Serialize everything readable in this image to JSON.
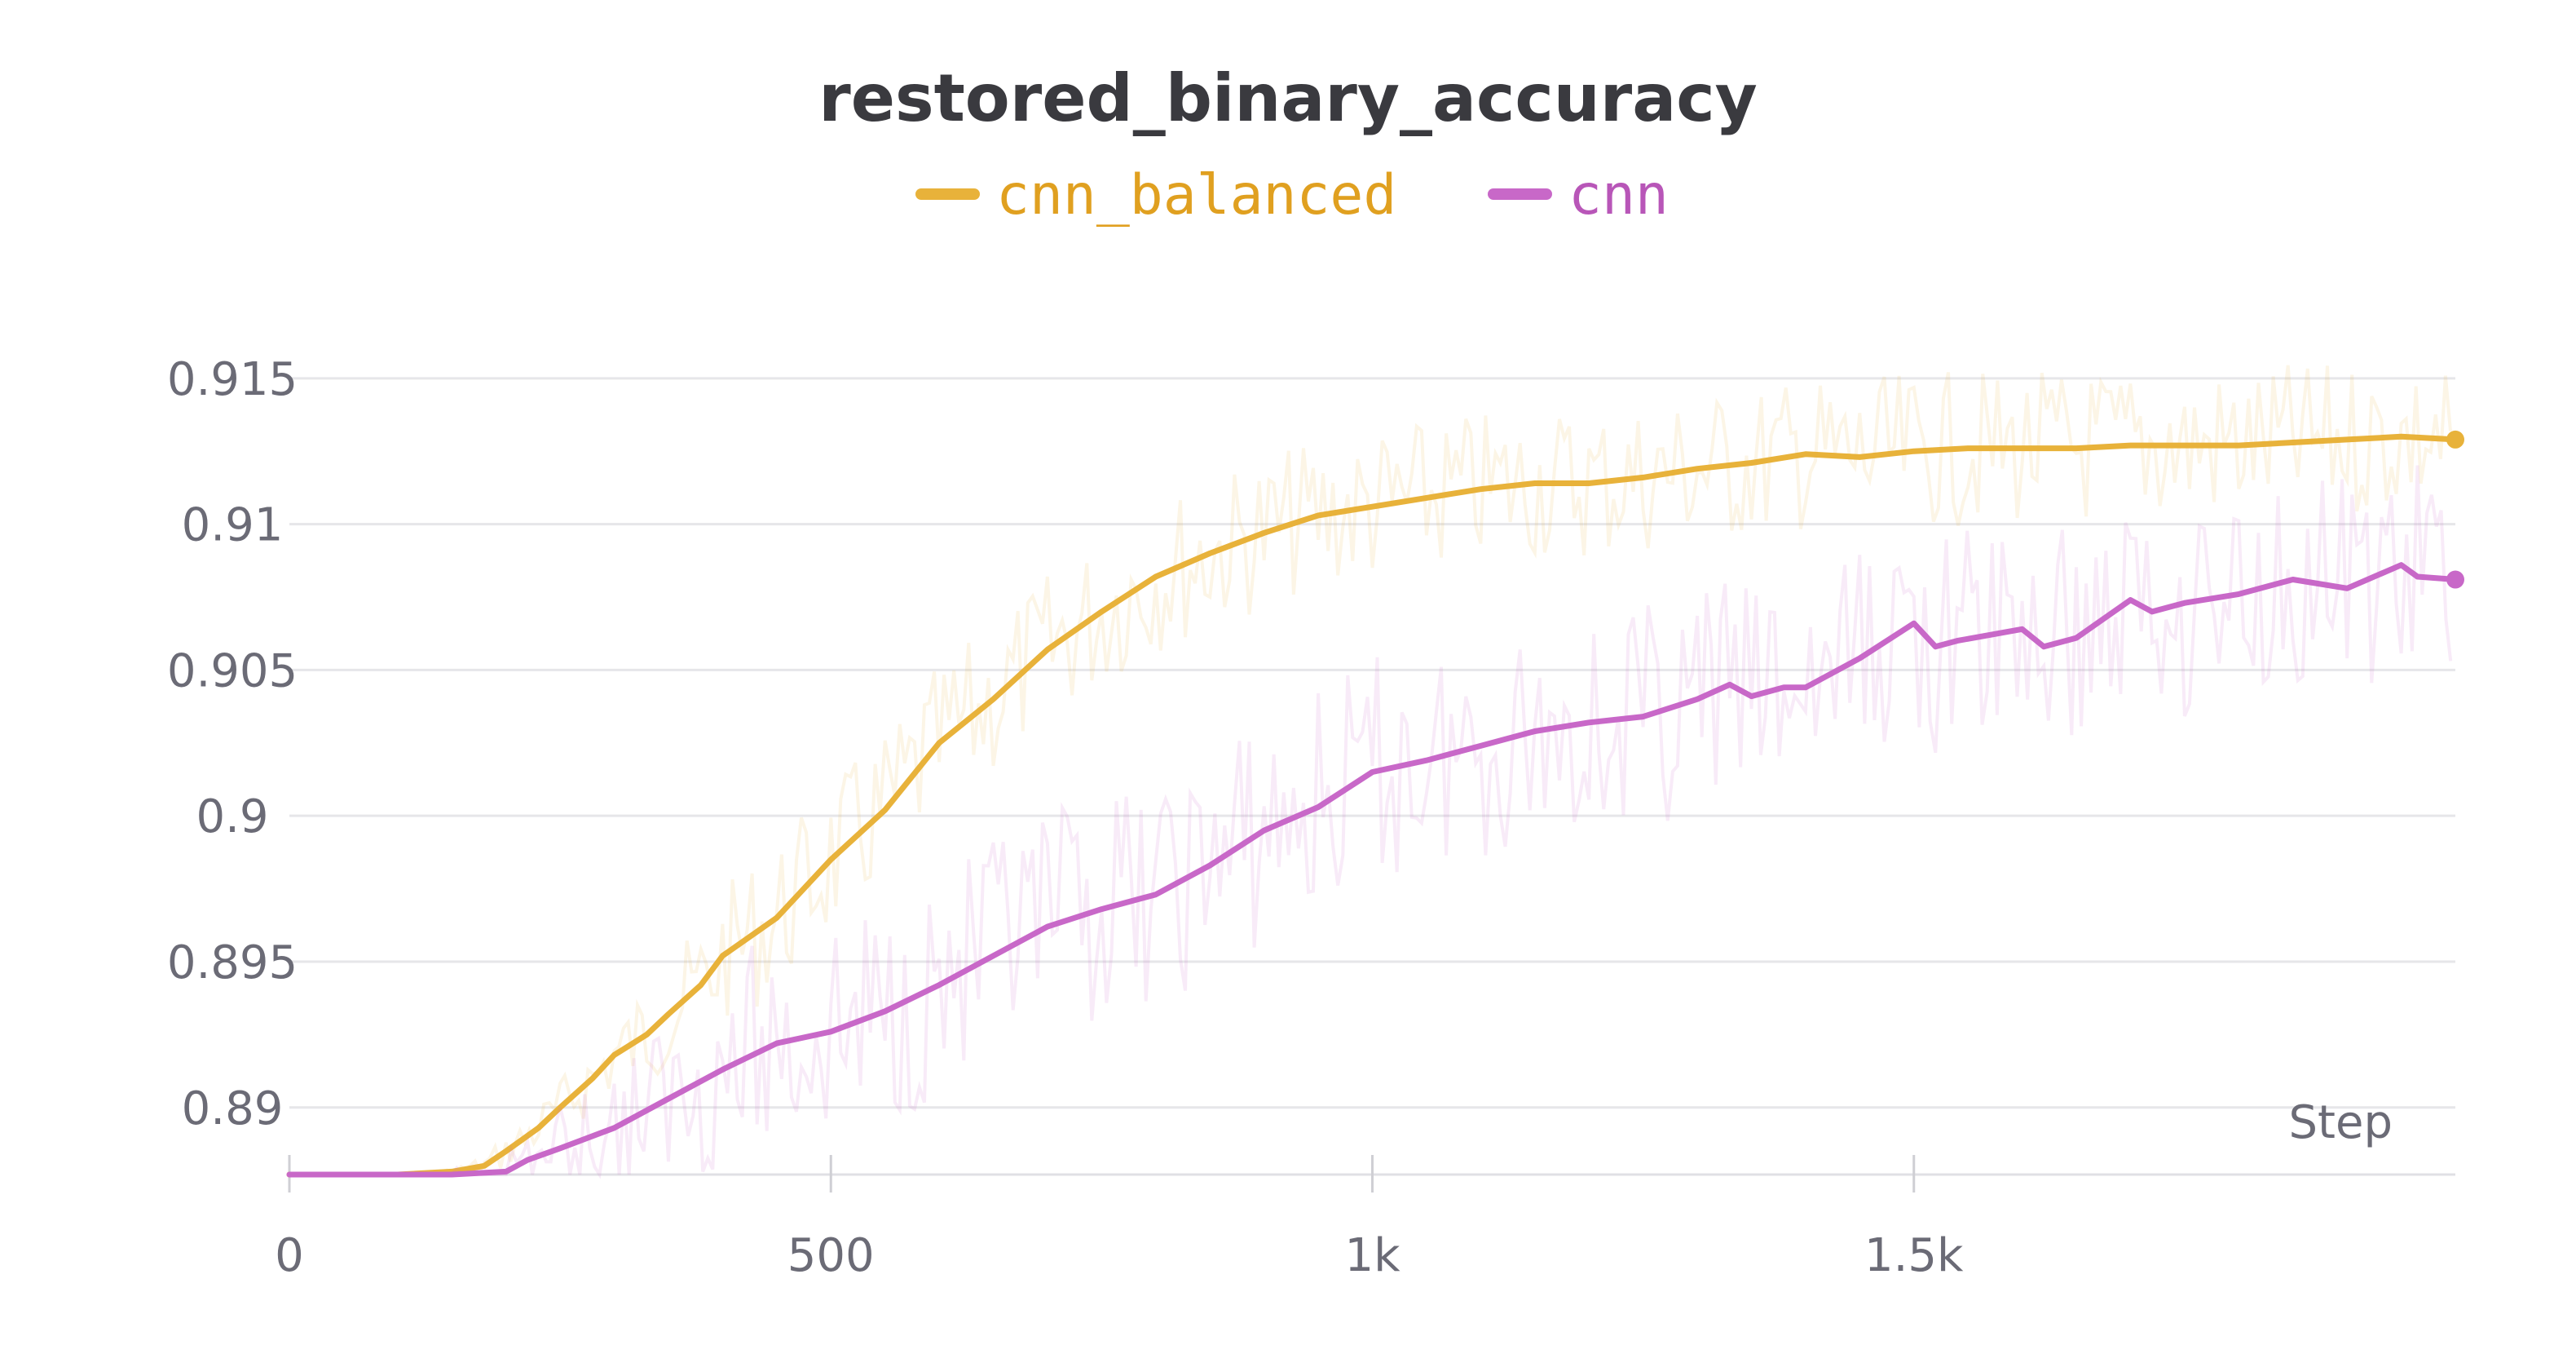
{
  "chart_data": {
    "type": "line",
    "title": "restored_binary_accuracy",
    "xlabel": "Step",
    "ylabel": "",
    "xlim": [
      0,
      2000
    ],
    "ylim": [
      0.8877,
      0.9174
    ],
    "x_ticks": [
      0,
      500,
      1000,
      1500
    ],
    "x_tick_labels": [
      "0",
      "500",
      "1k",
      "1.5k"
    ],
    "y_ticks": [
      0.89,
      0.895,
      0.9,
      0.905,
      0.91,
      0.915
    ],
    "y_tick_labels": [
      "0.89",
      "0.895",
      "0.9",
      "0.905",
      "0.91",
      "0.915"
    ],
    "grid": true,
    "legend_position": "top-center",
    "colors": {
      "cnn_balanced": "#e8b23a",
      "cnn": "#c868c8"
    },
    "series": [
      {
        "name": "cnn_balanced",
        "color": "#e8b23a",
        "smoothed": true,
        "x": [
          0,
          100,
          150,
          180,
          200,
          230,
          250,
          280,
          300,
          330,
          350,
          380,
          400,
          450,
          500,
          550,
          600,
          650,
          700,
          750,
          800,
          850,
          900,
          950,
          1000,
          1050,
          1100,
          1150,
          1200,
          1250,
          1300,
          1350,
          1400,
          1450,
          1500,
          1550,
          1600,
          1650,
          1700,
          1750,
          1800,
          1850,
          1900,
          1950,
          2000
        ],
        "y": [
          0.8877,
          0.8877,
          0.8878,
          0.888,
          0.8885,
          0.8893,
          0.89,
          0.891,
          0.8918,
          0.8925,
          0.8932,
          0.8942,
          0.8952,
          0.8965,
          0.8985,
          0.9002,
          0.9025,
          0.904,
          0.9057,
          0.907,
          0.9082,
          0.909,
          0.9097,
          0.9103,
          0.9106,
          0.9109,
          0.9112,
          0.9114,
          0.9114,
          0.9116,
          0.9119,
          0.9121,
          0.9124,
          0.9123,
          0.9125,
          0.9126,
          0.9126,
          0.9126,
          0.9127,
          0.9127,
          0.9127,
          0.9128,
          0.9129,
          0.913,
          0.9129
        ]
      },
      {
        "name": "cnn",
        "color": "#c868c8",
        "smoothed": true,
        "x": [
          0,
          150,
          200,
          220,
          250,
          300,
          350,
          400,
          450,
          500,
          550,
          600,
          650,
          700,
          750,
          800,
          850,
          900,
          950,
          1000,
          1050,
          1100,
          1150,
          1200,
          1250,
          1300,
          1330,
          1350,
          1380,
          1400,
          1450,
          1500,
          1520,
          1540,
          1600,
          1620,
          1650,
          1700,
          1720,
          1750,
          1800,
          1850,
          1900,
          1950,
          1965,
          2000
        ],
        "y": [
          0.8877,
          0.8877,
          0.8878,
          0.8882,
          0.8886,
          0.8893,
          0.8903,
          0.8913,
          0.8922,
          0.8926,
          0.8933,
          0.8942,
          0.8952,
          0.8962,
          0.8968,
          0.8973,
          0.8983,
          0.8995,
          0.9003,
          0.9015,
          0.9019,
          0.9024,
          0.9029,
          0.9032,
          0.9034,
          0.904,
          0.9045,
          0.9041,
          0.9044,
          0.9044,
          0.9054,
          0.9066,
          0.9058,
          0.906,
          0.9064,
          0.9058,
          0.9061,
          0.9074,
          0.907,
          0.9073,
          0.9076,
          0.9081,
          0.9078,
          0.9086,
          0.9082,
          0.9081
        ]
      }
    ]
  }
}
